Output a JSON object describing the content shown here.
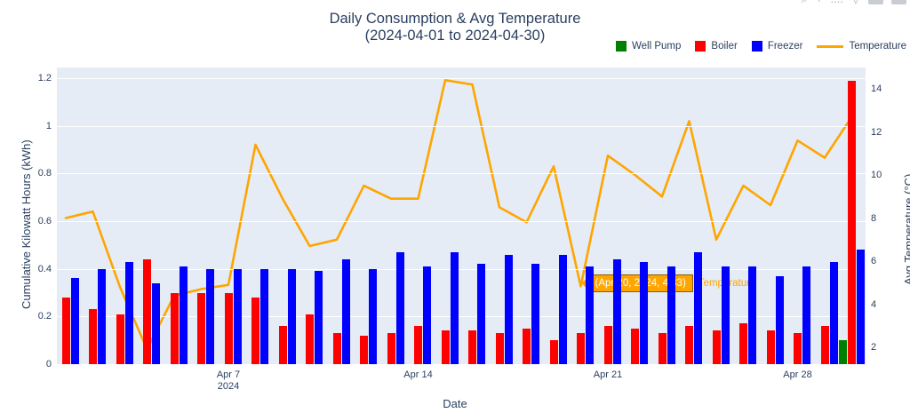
{
  "title": {
    "line1": "Daily Consumption & Avg Temperature",
    "line2": "(2024-04-01 to 2024-04-30)"
  },
  "legend": [
    {
      "label": "Well Pump",
      "color": "#008000",
      "swatch": "square"
    },
    {
      "label": "Boiler",
      "color": "#ff0000",
      "swatch": "square"
    },
    {
      "label": "Freezer",
      "color": "#0000ff",
      "swatch": "square"
    },
    {
      "label": "Temperature",
      "color": "#ffa500",
      "swatch": "line"
    }
  ],
  "tooltip": {
    "text": "(Apr 20, 2024, 4.83)",
    "trace_name": "Temperature",
    "date": "2024-04-20",
    "value": 4.83,
    "bg_color": "#ffa500",
    "border_color": "#8c5e00",
    "text_color": "#ffffff"
  },
  "modebar_icons": [
    "zoom-icon",
    "pan-icon",
    "dots-icon",
    "autoscale-icon",
    "button-rect-1",
    "button-rect-2"
  ],
  "chart_data": {
    "type": "bar",
    "title": "Daily Consumption & Avg Temperature (2024-04-01 to 2024-04-30)",
    "xlabel": "Date",
    "ylabel_left": "Cumulative Kilowatt Hours (kWh)",
    "ylabel_right": "Avg Temperature (°C)",
    "x_dates": [
      "2024-04-01",
      "2024-04-02",
      "2024-04-03",
      "2024-04-04",
      "2024-04-05",
      "2024-04-06",
      "2024-04-07",
      "2024-04-08",
      "2024-04-09",
      "2024-04-10",
      "2024-04-11",
      "2024-04-12",
      "2024-04-13",
      "2024-04-14",
      "2024-04-15",
      "2024-04-16",
      "2024-04-17",
      "2024-04-18",
      "2024-04-19",
      "2024-04-20",
      "2024-04-21",
      "2024-04-22",
      "2024-04-23",
      "2024-04-24",
      "2024-04-25",
      "2024-04-26",
      "2024-04-27",
      "2024-04-28",
      "2024-04-29",
      "2024-04-30"
    ],
    "series": [
      {
        "name": "Well Pump",
        "type": "bar",
        "color": "#008000",
        "axis": "left",
        "values": [
          0,
          0,
          0,
          0,
          0,
          0,
          0,
          0,
          0,
          0,
          0,
          0,
          0,
          0,
          0,
          0,
          0,
          0,
          0,
          0,
          0,
          0,
          0,
          0,
          0,
          0,
          0,
          0,
          0,
          0.1
        ]
      },
      {
        "name": "Boiler",
        "type": "bar",
        "color": "#ff0000",
        "axis": "left",
        "values": [
          0.28,
          0.23,
          0.21,
          0.44,
          0.3,
          0.3,
          0.3,
          0.28,
          0.16,
          0.21,
          0.13,
          0.12,
          0.13,
          0.16,
          0.14,
          0.14,
          0.13,
          0.15,
          0.1,
          0.13,
          0.16,
          0.15,
          0.13,
          0.16,
          0.14,
          0.17,
          0.14,
          0.13,
          0.16,
          1.19
        ]
      },
      {
        "name": "Freezer",
        "type": "bar",
        "color": "#0000ff",
        "axis": "left",
        "values": [
          0.36,
          0.4,
          0.43,
          0.34,
          0.41,
          0.4,
          0.4,
          0.4,
          0.4,
          0.39,
          0.44,
          0.4,
          0.47,
          0.41,
          0.47,
          0.42,
          0.46,
          0.42,
          0.46,
          0.41,
          0.44,
          0.43,
          0.41,
          0.47,
          0.41,
          0.41,
          0.37,
          0.41,
          0.43,
          0.48
        ]
      },
      {
        "name": "Temperature",
        "type": "line",
        "color": "#ffa500",
        "axis": "right",
        "values": [
          8.0,
          8.3,
          4.8,
          1.9,
          4.4,
          4.7,
          4.9,
          11.4,
          8.9,
          6.7,
          7.0,
          9.5,
          8.9,
          8.9,
          14.4,
          14.2,
          8.5,
          7.8,
          10.4,
          4.83,
          10.9,
          10.0,
          9.0,
          12.5,
          7.0,
          9.5,
          8.6,
          11.6,
          10.8,
          12.7
        ]
      }
    ],
    "yticks_left": {
      "labels": [
        "0",
        "0.2",
        "0.4",
        "0.6",
        "0.8",
        "1",
        "1.2"
      ],
      "values": [
        0,
        0.2,
        0.4,
        0.6,
        0.8,
        1.0,
        1.2
      ]
    },
    "yticks_right": {
      "labels": [
        "2",
        "4",
        "6",
        "8",
        "10",
        "12",
        "14"
      ],
      "values": [
        2,
        4,
        6,
        8,
        10,
        12,
        14
      ]
    },
    "xticks": [
      {
        "day_index": 6,
        "label": "Apr 7",
        "sublabel": "2024"
      },
      {
        "day_index": 13,
        "label": "Apr 14",
        "sublabel": ""
      },
      {
        "day_index": 20,
        "label": "Apr 21",
        "sublabel": ""
      },
      {
        "day_index": 27,
        "label": "Apr 28",
        "sublabel": ""
      }
    ],
    "ylim_left": [
      0,
      1.245
    ],
    "ylim_right": [
      1.32,
      14.9
    ],
    "grid": true,
    "legend_position": "top-right",
    "plot_bg_color": "#e5ecf6",
    "tooltip_point": {
      "day_index": 19,
      "series": "Temperature",
      "value": 4.83
    }
  }
}
